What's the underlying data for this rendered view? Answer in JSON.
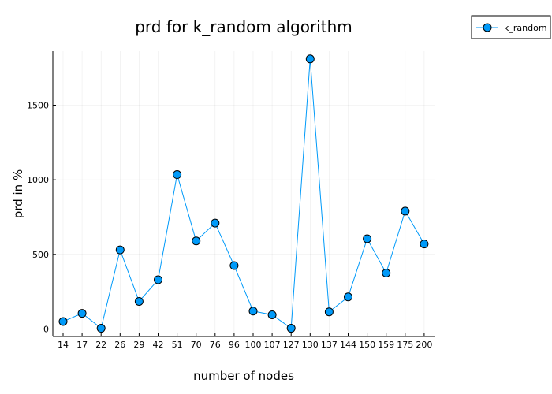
{
  "chart_data": {
    "type": "line",
    "title": "prd for k_random algorithm",
    "xlabel": "number of nodes",
    "ylabel": "prd in %",
    "categories": [
      "14",
      "17",
      "22",
      "26",
      "29",
      "42",
      "51",
      "70",
      "76",
      "96",
      "100",
      "107",
      "127",
      "130",
      "137",
      "144",
      "150",
      "159",
      "175",
      "200"
    ],
    "series": [
      {
        "name": "k_random",
        "color": "#009af9",
        "marker": "circle",
        "values": [
          50,
          105,
          5,
          530,
          185,
          330,
          1035,
          590,
          710,
          425,
          120,
          95,
          5,
          1810,
          115,
          215,
          605,
          375,
          790,
          570
        ]
      }
    ],
    "ylim": [
      -50,
      1870
    ],
    "yticks": [
      0,
      500,
      1000,
      1500
    ],
    "grid": true,
    "legend": "top-right"
  }
}
